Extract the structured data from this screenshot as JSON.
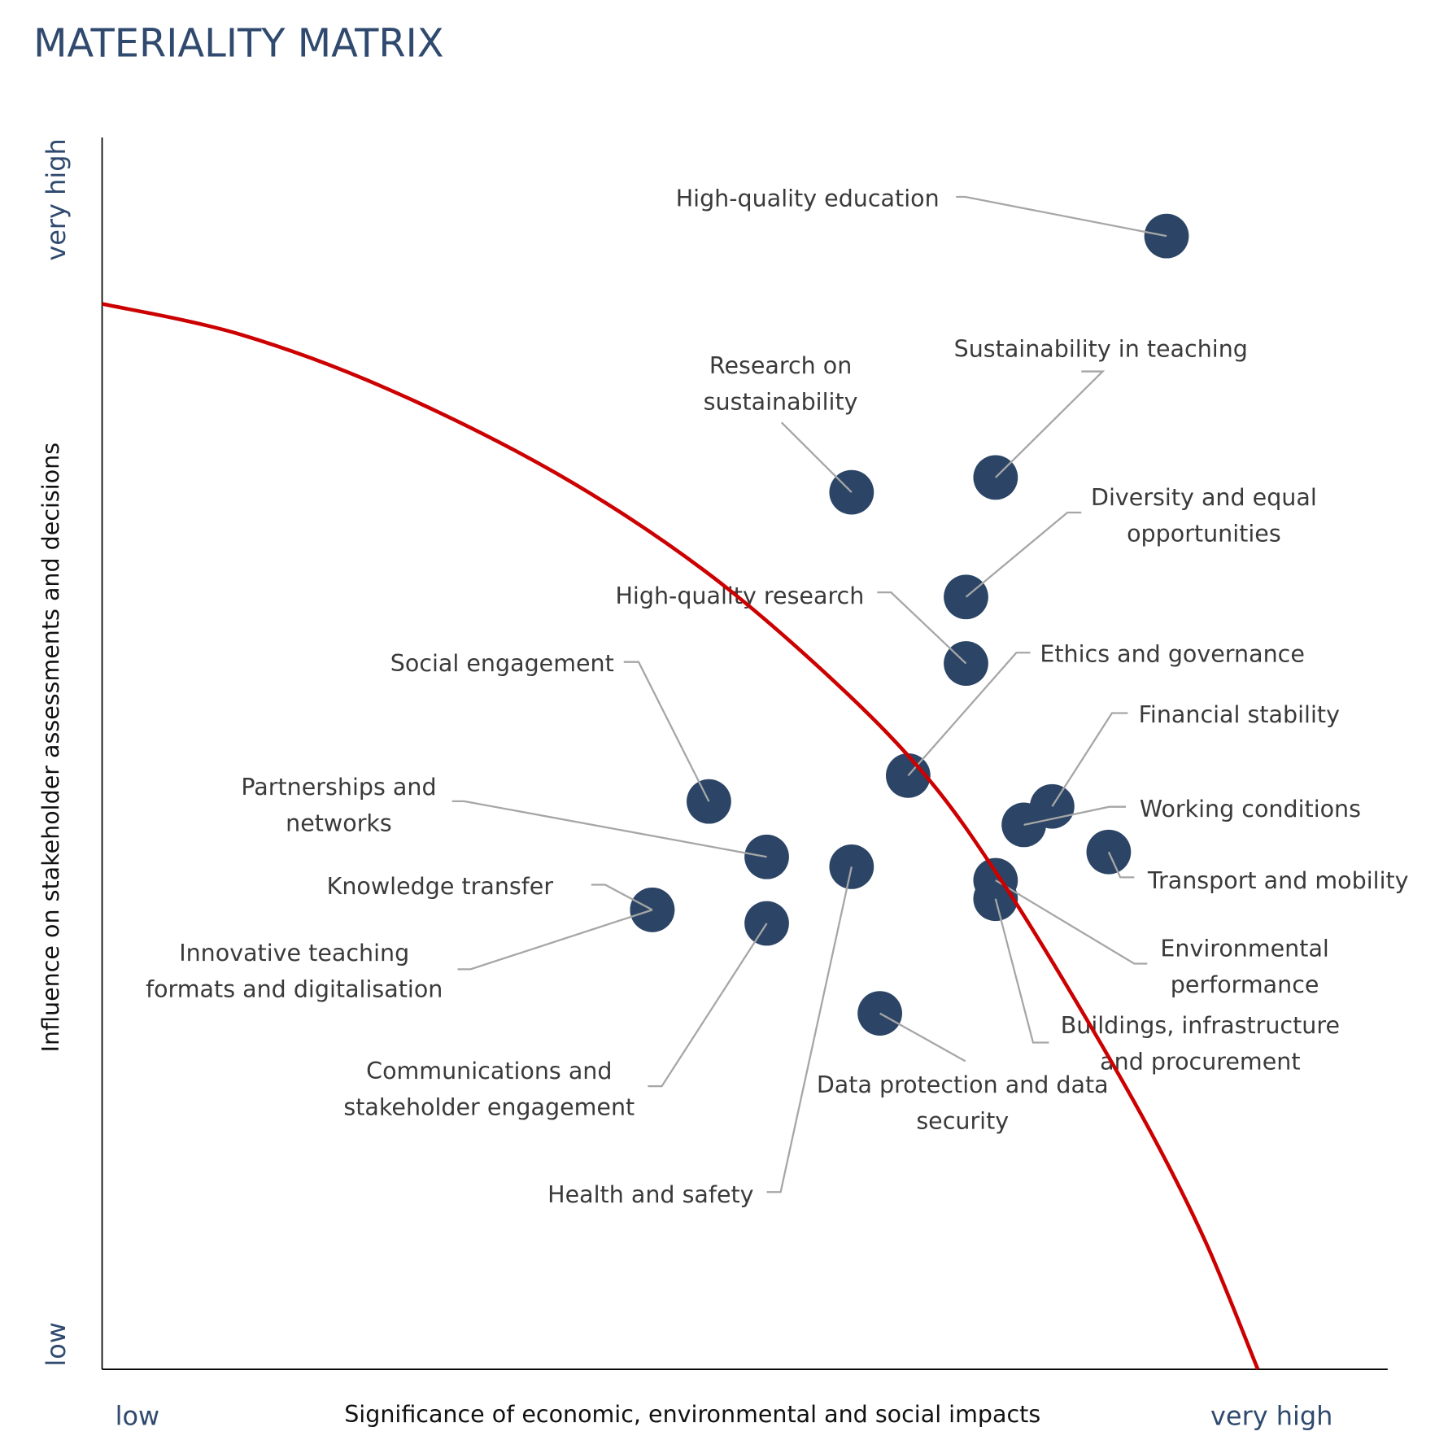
{
  "chart_data": {
    "type": "scatter",
    "title": "MATERIALITY MATRIX",
    "xlabel": "Significance of economic, environmental and social impacts",
    "ylabel": "Influence on stakeholder assessments and decisions",
    "x_tick_labels": {
      "low": "low",
      "high": "very high"
    },
    "y_tick_labels": {
      "low": "low",
      "high": "very high"
    },
    "xlim": [
      0,
      100
    ],
    "ylim": [
      0,
      100
    ],
    "grid": false,
    "colors": {
      "points": "#2c4566",
      "threshold": "#cc0000",
      "leader": "#a6a6a6",
      "title": "#2f4a6e"
    },
    "points": [
      {
        "label": [
          "High-quality education"
        ],
        "x": 82.8,
        "y": 92.0
      },
      {
        "label": [
          "Sustainability in teaching"
        ],
        "x": 69.5,
        "y": 72.4
      },
      {
        "label": [
          "Research on",
          "sustainability"
        ],
        "x": 58.3,
        "y": 71.2
      },
      {
        "label": [
          "Diversity and equal",
          "opportunities"
        ],
        "x": 67.2,
        "y": 62.7
      },
      {
        "label": [
          "High-quality research"
        ],
        "x": 67.2,
        "y": 57.3
      },
      {
        "label": [
          "Ethics and governance"
        ],
        "x": 62.7,
        "y": 48.2
      },
      {
        "label": [
          "Financial stability"
        ],
        "x": 73.9,
        "y": 45.7
      },
      {
        "label": [
          "Working conditions"
        ],
        "x": 71.7,
        "y": 44.2
      },
      {
        "label": [
          "Transport and mobility"
        ],
        "x": 78.3,
        "y": 42.0
      },
      {
        "label": [
          "Social engagement"
        ],
        "x": 47.2,
        "y": 46.1
      },
      {
        "label": [
          "Partnerships and",
          "networks"
        ],
        "x": 51.7,
        "y": 41.6
      },
      {
        "label": [
          "Knowledge transfer"
        ],
        "x": 42.8,
        "y": 37.3
      },
      {
        "label": [
          "Innovative teaching",
          "formats and digitalisation"
        ],
        "x": 42.8,
        "y": 37.3
      },
      {
        "label": [
          "Communications and",
          "stakeholder engagement"
        ],
        "x": 51.7,
        "y": 36.2
      },
      {
        "label": [
          "Health and safety"
        ],
        "x": 58.3,
        "y": 40.8
      },
      {
        "label": [
          "Environmental",
          "performance"
        ],
        "x": 69.5,
        "y": 39.7
      },
      {
        "label": [
          "Buildings, infrastructure",
          "and procurement"
        ],
        "x": 69.5,
        "y": 38.2
      },
      {
        "label": [
          "Data protection and data",
          "security"
        ],
        "x": 60.5,
        "y": 28.9
      }
    ],
    "threshold_curve": [
      [
        0,
        86.5
      ],
      [
        10.8,
        84.0
      ],
      [
        22.4,
        79.5
      ],
      [
        35.4,
        72.7
      ],
      [
        46.9,
        64.8
      ],
      [
        57.0,
        55.8
      ],
      [
        64.3,
        47.9
      ],
      [
        70.0,
        39.6
      ],
      [
        75.8,
        29.8
      ],
      [
        81.6,
        19.2
      ],
      [
        85.9,
        10.2
      ],
      [
        89.9,
        0
      ]
    ]
  }
}
